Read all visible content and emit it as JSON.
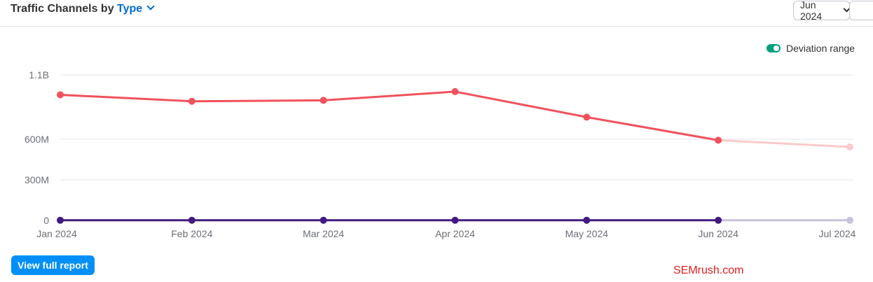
{
  "header": {
    "title_prefix": "Traffic Channels by",
    "type_label": "Type"
  },
  "month_select": {
    "value": "Jun 2024"
  },
  "deviation_toggle": {
    "label": "Deviation range",
    "enabled": true
  },
  "view_full_report": {
    "label": "View full report"
  },
  "watermark": "SEMrush.com",
  "colors": {
    "accent": "#006dca",
    "button": "#008ff8",
    "toggle": "#009f81",
    "series_red": "#f0525c",
    "series_red_forecast": "#fbcacc",
    "series_purple": "#421a7f",
    "series_purple_forecast": "#c8c2dc",
    "grid": "#e6e6ee",
    "watermark": "#e02020"
  },
  "chart_data": {
    "type": "line",
    "categories": [
      "Jan 2024",
      "Feb 2024",
      "Mar 2024",
      "Apr 2024",
      "May 2024",
      "Jun 2024",
      "Jul 2024"
    ],
    "y_ticks": [
      {
        "value": 0,
        "label": "0"
      },
      {
        "value": 300000000,
        "label": "300M"
      },
      {
        "value": 600000000,
        "label": "600M"
      },
      {
        "value": 1100000000,
        "label": "1.1B"
      }
    ],
    "ylim": [
      0,
      1100000000
    ],
    "grid": true,
    "forecast_from_index": 5,
    "series": [
      {
        "color": "#f0525c",
        "forecast_color": "#fbcacc",
        "values": [
          945000000,
          895000000,
          902000000,
          970000000,
          772000000,
          593000000,
          543000000
        ]
      },
      {
        "color": "#421a7f",
        "forecast_color": "#c8c2dc",
        "values": [
          1000000,
          1000000,
          1000000,
          1000000,
          1000000,
          1000000,
          1000000
        ]
      }
    ]
  }
}
